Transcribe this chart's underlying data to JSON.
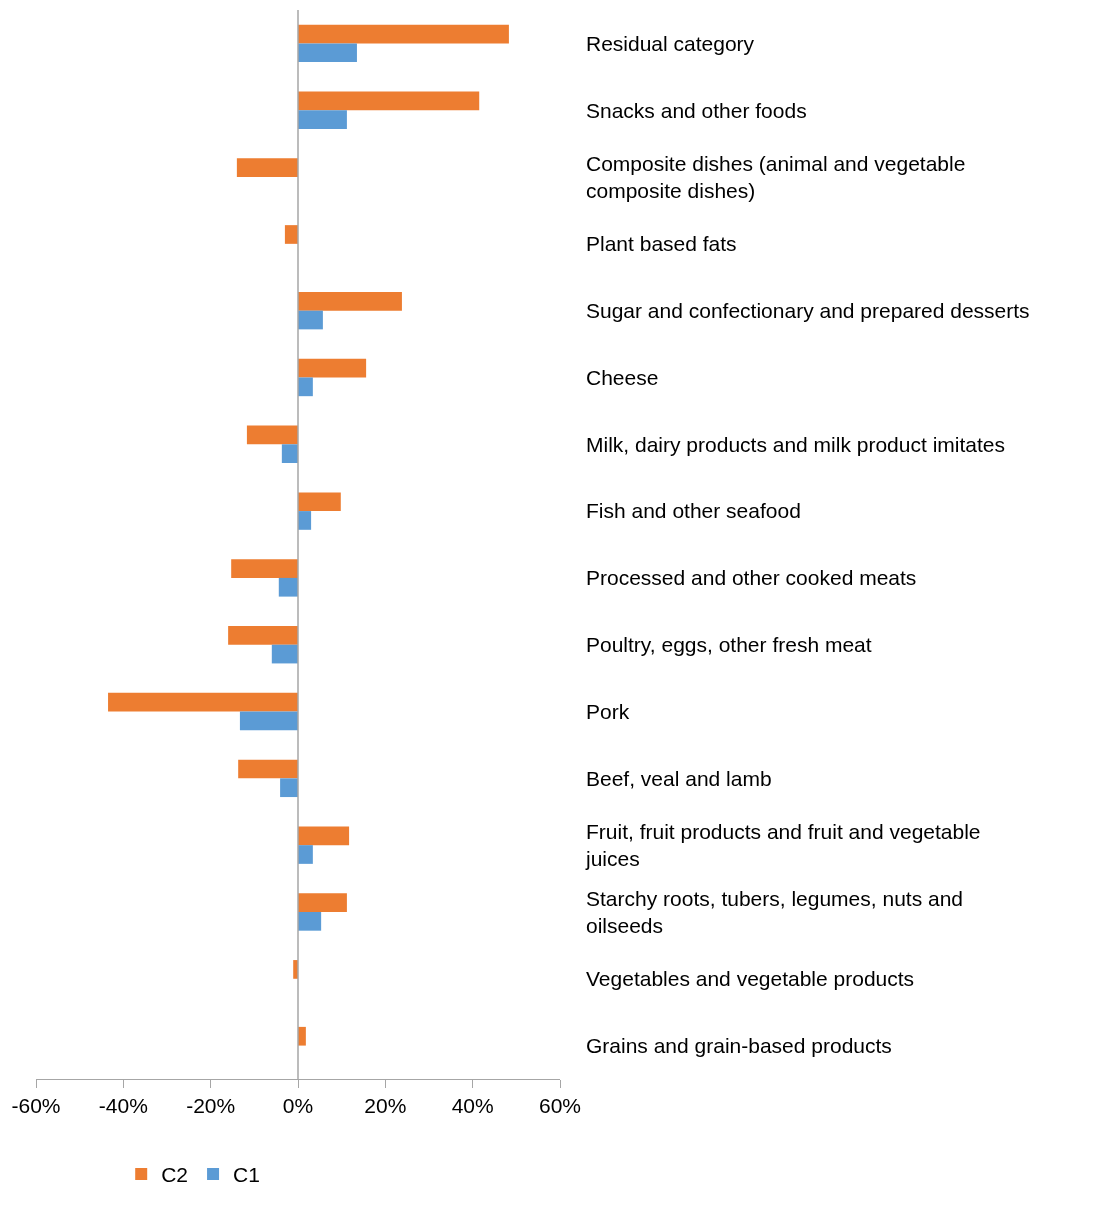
{
  "chart_data": {
    "type": "bar",
    "orientation": "horizontal",
    "categories": [
      "Residual category",
      "Snacks and other foods",
      "Composite dishes (animal and vegetable composite dishes)",
      "Plant based fats",
      "Sugar and confectionary and prepared desserts",
      "Cheese",
      "Milk, dairy products and milk product imitates",
      "Fish and other seafood",
      "Processed and other cooked meats",
      "Poultry, eggs, other fresh meat",
      "Pork",
      "Beef, veal and lamb",
      "Fruit, fruit products and fruit and vegetable juices",
      "Starchy roots, tubers, legumes, nuts and oilseeds",
      "Vegetables and vegetable products",
      "Grains and grain-based products"
    ],
    "series": [
      {
        "name": "C2",
        "color": "#ed7d31",
        "values": [
          48.3,
          41.5,
          -14.0,
          -3.0,
          23.8,
          15.6,
          -11.7,
          9.8,
          -15.3,
          -16.0,
          -43.5,
          -13.7,
          11.7,
          11.2,
          -1.1,
          1.8
        ]
      },
      {
        "name": "C1",
        "color": "#5b9bd5",
        "values": [
          13.5,
          11.2,
          null,
          null,
          5.7,
          3.4,
          -3.7,
          3.0,
          -4.4,
          -6.0,
          -13.3,
          -4.1,
          3.4,
          5.3,
          null,
          null
        ]
      }
    ],
    "xlim": [
      -60,
      60
    ],
    "xticks": [
      {
        "value": -60,
        "label": "-60%"
      },
      {
        "value": -40,
        "label": "-40%"
      },
      {
        "value": -20,
        "label": "-20%"
      },
      {
        "value": 0,
        "label": "0%"
      },
      {
        "value": 20,
        "label": "20%"
      },
      {
        "value": 40,
        "label": "40%"
      },
      {
        "value": 60,
        "label": "60%"
      }
    ],
    "legend": "bottom"
  }
}
